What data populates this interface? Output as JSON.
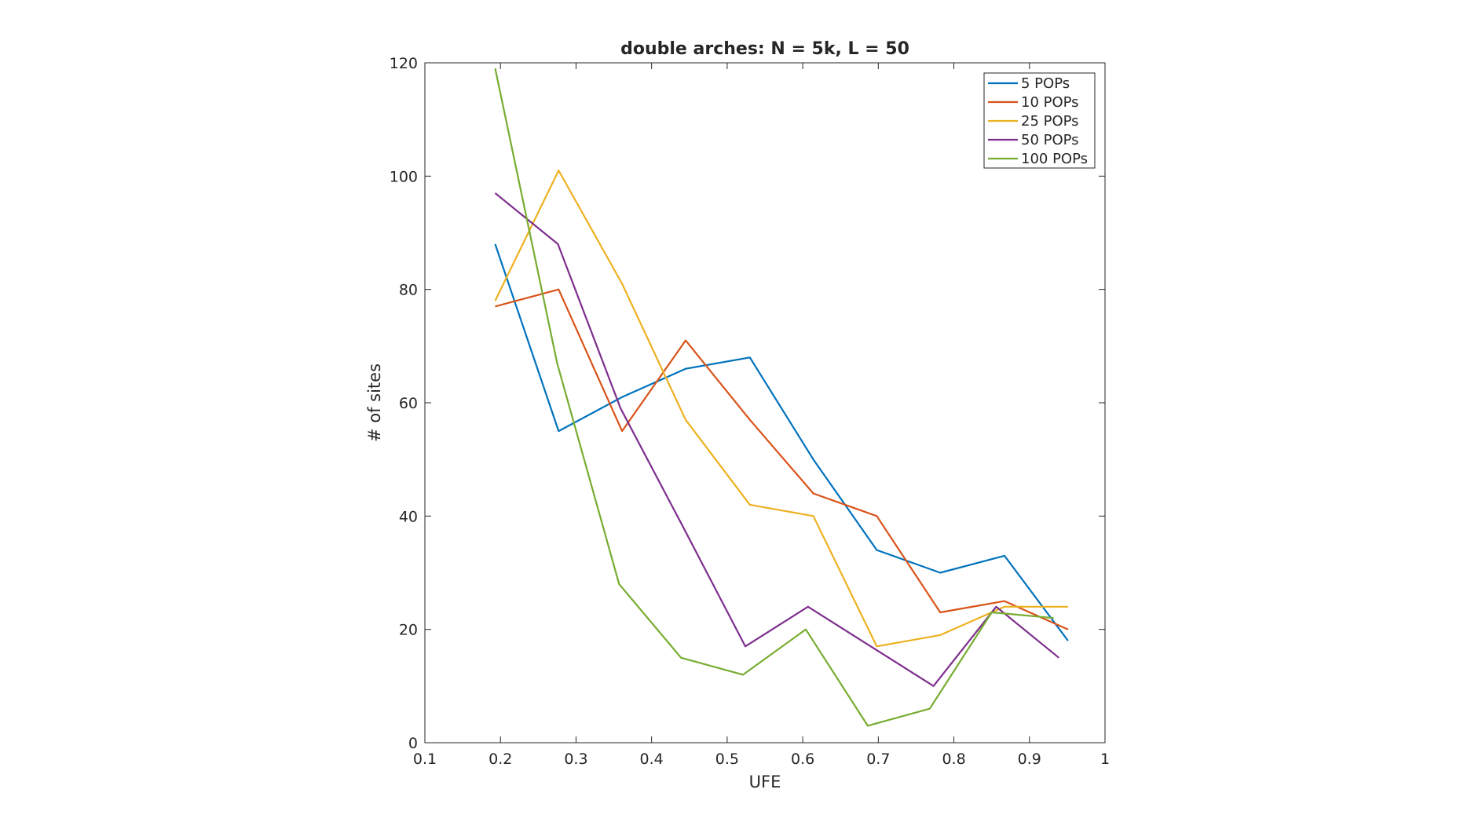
{
  "chart_data": {
    "type": "line",
    "title": "double arches: N = 5k, L = 50",
    "xlabel": "UFE",
    "ylabel": "# of sites",
    "xlim": [
      0.1,
      1
    ],
    "ylim": [
      0,
      120
    ],
    "xticks": [
      0.1,
      0.2,
      0.3,
      0.4,
      0.5,
      0.6,
      0.7,
      0.8,
      0.9,
      1
    ],
    "xtick_labels": [
      "0.1",
      "0.2",
      "0.3",
      "0.4",
      "0.5",
      "0.6",
      "0.7",
      "0.8",
      "0.9",
      "1"
    ],
    "yticks": [
      0,
      20,
      40,
      60,
      80,
      100,
      120
    ],
    "ytick_labels": [
      "0",
      "20",
      "40",
      "60",
      "80",
      "100",
      "120"
    ],
    "grid": false,
    "legend_position": "top-right",
    "series": [
      {
        "name": "5 POPs",
        "color": "#0072BD",
        "x": [
          0.193,
          0.277,
          0.361,
          0.445,
          0.53,
          0.614,
          0.698,
          0.782,
          0.867,
          0.951
        ],
        "y": [
          88,
          55,
          61,
          66,
          68,
          50,
          34,
          30,
          33,
          18
        ]
      },
      {
        "name": "10 POPs",
        "color": "#D95319",
        "x": [
          0.193,
          0.277,
          0.361,
          0.445,
          0.53,
          0.614,
          0.698,
          0.782,
          0.867,
          0.951
        ],
        "y": [
          77,
          80,
          55,
          71,
          57,
          44,
          40,
          23,
          25,
          20
        ]
      },
      {
        "name": "25 POPs",
        "color": "#EDB120",
        "x": [
          0.193,
          0.277,
          0.361,
          0.445,
          0.53,
          0.614,
          0.698,
          0.782,
          0.867,
          0.951
        ],
        "y": [
          78,
          101,
          81,
          57,
          42,
          40,
          17,
          19,
          24,
          24
        ]
      },
      {
        "name": "50 POPs",
        "color": "#7E2F8E",
        "x": [
          0.193,
          0.276,
          0.359,
          0.442,
          0.524,
          0.607,
          0.69,
          0.773,
          0.856,
          0.939
        ],
        "y": [
          97,
          88,
          59,
          38,
          17,
          24,
          17,
          10,
          24,
          15
        ]
      },
      {
        "name": "100 POPs",
        "color": "#77AC30",
        "x": [
          0.193,
          0.275,
          0.357,
          0.439,
          0.521,
          0.604,
          0.686,
          0.768,
          0.85,
          0.932
        ],
        "y": [
          119,
          67,
          28,
          15,
          12,
          20,
          3,
          6,
          23,
          22
        ]
      }
    ]
  }
}
